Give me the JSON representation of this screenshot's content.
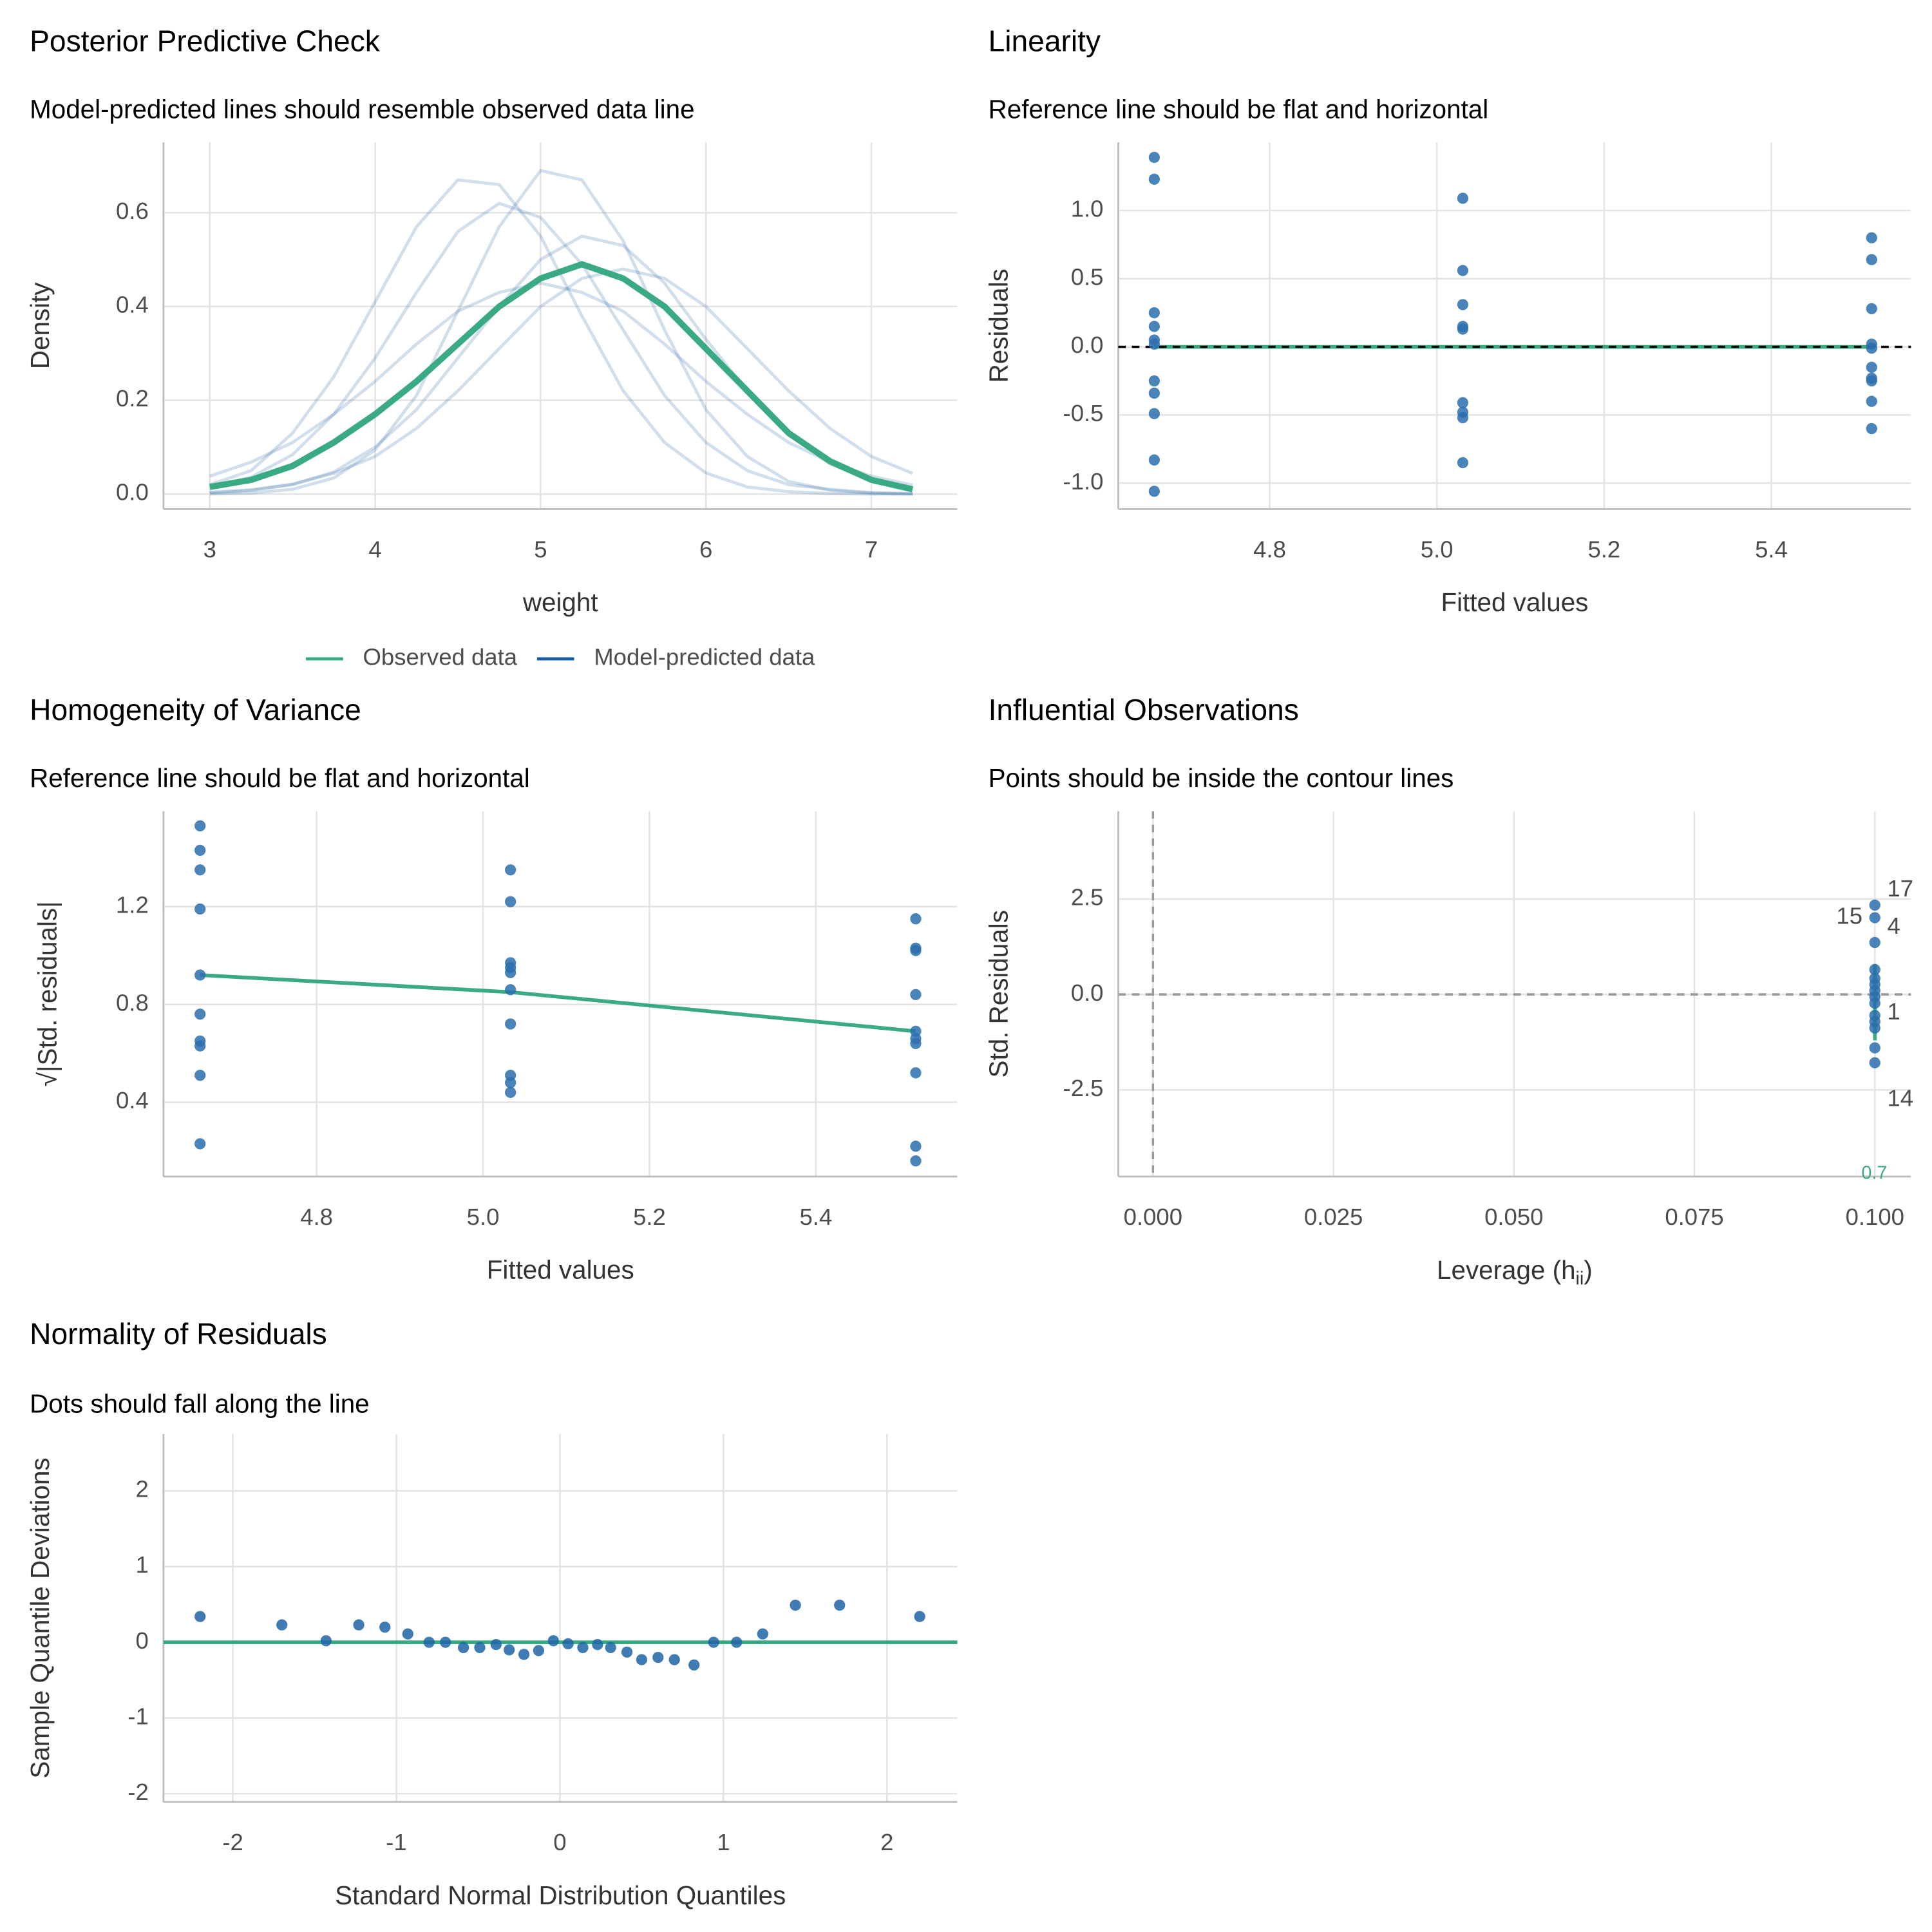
{
  "chart_data": [
    {
      "type": "line",
      "title": "Posterior Predictive Check",
      "subtitle": "Model-predicted lines should resemble observed data line",
      "xlabel": "weight",
      "ylabel": "Density",
      "xlim": [
        2.72,
        7.52
      ],
      "ylim": [
        -0.032,
        0.75
      ],
      "xticks": [
        3,
        4,
        5,
        6,
        7
      ],
      "yticks": [
        {
          "value": 0,
          "label": "0.0"
        },
        0.2,
        0.4,
        0.6
      ],
      "grid": true,
      "legend": "bottom",
      "x": [
        3.0,
        3.25,
        3.5,
        3.75,
        4.0,
        4.25,
        4.5,
        4.75,
        5.0,
        5.25,
        5.5,
        5.75,
        6.0,
        6.25,
        6.5,
        6.75,
        7.0,
        7.25
      ],
      "series": [
        {
          "name": "Observed data",
          "color": "#3aaa84",
          "values": [
            0.015,
            0.03,
            0.06,
            0.11,
            0.17,
            0.24,
            0.32,
            0.4,
            0.46,
            0.49,
            0.46,
            0.4,
            0.31,
            0.22,
            0.13,
            0.07,
            0.03,
            0.01
          ]
        },
        {
          "name": "Model-predicted data",
          "color": "#1b5fa0",
          "values": [
            [
              0.013,
              0.036,
              0.084,
              0.17,
              0.29,
              0.43,
              0.56,
              0.62,
              0.59,
              0.49,
              0.35,
              0.21,
              0.11,
              0.05,
              0.02,
              0.01,
              0.003,
              0.001
            ],
            [
              0.002,
              0.008,
              0.02,
              0.047,
              0.1,
              0.18,
              0.29,
              0.4,
              0.5,
              0.55,
              0.53,
              0.45,
              0.33,
              0.22,
              0.13,
              0.064,
              0.029,
              0.011
            ],
            [
              0.038,
              0.068,
              0.11,
              0.17,
              0.24,
              0.32,
              0.39,
              0.43,
              0.45,
              0.43,
              0.39,
              0.32,
              0.24,
              0.17,
              0.11,
              0.068,
              0.038,
              0.019
            ],
            [
              0.02,
              0.05,
              0.13,
              0.25,
              0.41,
              0.57,
              0.67,
              0.66,
              0.55,
              0.38,
              0.22,
              0.11,
              0.045,
              0.015,
              0.005,
              0.001,
              0,
              0
            ],
            [
              0.004,
              0.009,
              0.021,
              0.044,
              0.08,
              0.14,
              0.22,
              0.31,
              0.4,
              0.46,
              0.48,
              0.46,
              0.4,
              0.31,
              0.22,
              0.14,
              0.08,
              0.044
            ],
            [
              0,
              0.002,
              0.01,
              0.034,
              0.094,
              0.21,
              0.39,
              0.57,
              0.69,
              0.67,
              0.54,
              0.35,
              0.18,
              0.08,
              0.027,
              0.008,
              0.002,
              0
            ]
          ]
        }
      ]
    },
    {
      "type": "scatter",
      "title": "Linearity",
      "subtitle": "Reference line should be flat and horizontal",
      "xlabel": "Fitted values",
      "ylabel": "Residuals",
      "xlim": [
        4.619,
        5.567
      ],
      "ylim": [
        -1.19,
        1.5
      ],
      "xticks": [
        4.8,
        {
          "value": 5,
          "label": "5.0"
        },
        5.2,
        5.4
      ],
      "yticks": [
        {
          "value": -1,
          "label": "-1.0"
        },
        -0.5,
        {
          "value": 0,
          "label": "0.0"
        },
        0.5,
        {
          "value": 1,
          "label": "1.0"
        }
      ],
      "grid": true,
      "color": "#2a6fad",
      "x": [
        4.662,
        4.662,
        4.662,
        4.662,
        4.662,
        4.662,
        4.662,
        4.662,
        4.662,
        4.662,
        4.662,
        5.031,
        5.031,
        5.031,
        5.031,
        5.031,
        5.031,
        5.031,
        5.031,
        5.031,
        5.52,
        5.52,
        5.52,
        5.52,
        5.52,
        5.52,
        5.52,
        5.52,
        5.52,
        5.52
      ],
      "values": [
        1.39,
        1.23,
        0.25,
        0.15,
        0.05,
        0.02,
        -0.25,
        -0.34,
        -0.49,
        -0.83,
        -1.06,
        1.09,
        0.56,
        0.31,
        0.15,
        0.13,
        -0.41,
        -0.48,
        -0.52,
        -0.85,
        0.8,
        0.64,
        0.28,
        0.02,
        -0.01,
        -0.15,
        -0.23,
        -0.25,
        -0.4,
        -0.6
      ],
      "fit": {
        "color": "#3aaa84",
        "x": [
          4.662,
          5.52
        ],
        "values": [
          0,
          0
        ]
      },
      "hline": {
        "value": 0,
        "color": "#000000",
        "dashed": true
      }
    },
    {
      "type": "scatter",
      "title": "Homogeneity of Variance",
      "subtitle": "Reference line should be flat and horizontal",
      "xlabel": "Fitted values",
      "ylabel": "√|Std. residuals|",
      "xlim": [
        4.616,
        5.57
      ],
      "ylim": [
        0.096,
        1.59
      ],
      "xticks": [
        4.8,
        {
          "value": 5,
          "label": "5.0"
        },
        5.2,
        5.4
      ],
      "yticks": [
        0.4,
        0.8,
        1.2
      ],
      "grid": true,
      "color": "#2a6fad",
      "x": [
        4.66,
        4.66,
        4.66,
        4.66,
        4.66,
        4.66,
        4.66,
        4.66,
        4.66,
        4.66,
        5.033,
        5.033,
        5.033,
        5.033,
        5.033,
        5.033,
        5.033,
        5.033,
        5.033,
        5.033,
        5.52,
        5.52,
        5.52,
        5.52,
        5.52,
        5.52,
        5.52,
        5.52,
        5.52,
        5.52
      ],
      "values": [
        1.53,
        1.43,
        1.35,
        1.19,
        0.92,
        0.76,
        0.65,
        0.63,
        0.51,
        0.23,
        1.35,
        1.22,
        0.97,
        0.95,
        0.93,
        0.86,
        0.72,
        0.51,
        0.48,
        0.44,
        1.15,
        1.03,
        1.02,
        0.84,
        0.69,
        0.66,
        0.64,
        0.52,
        0.22,
        0.16
      ],
      "fit": {
        "color": "#3aaa84",
        "x": [
          4.66,
          5.033,
          5.52
        ],
        "values": [
          0.92,
          0.85,
          0.69
        ]
      }
    },
    {
      "type": "scatter",
      "title": "Influential Observations",
      "subtitle": "Points should be inside the contour lines",
      "xlabel": [
        "Leverage (h",
        "ii",
        ")"
      ],
      "ylabel": "Std. Residuals",
      "xlim": [
        -0.0048,
        0.105
      ],
      "ylim": [
        -4.77,
        4.8
      ],
      "xticks": [
        {
          "value": 0,
          "label": "0.000"
        },
        {
          "value": 0.025,
          "label": "0.025"
        },
        {
          "value": 0.05,
          "label": "0.050"
        },
        {
          "value": 0.075,
          "label": "0.075"
        },
        {
          "value": 0.1,
          "label": "0.100"
        }
      ],
      "yticks": [
        -2.5,
        {
          "value": 0,
          "label": "0.0"
        },
        2.5
      ],
      "grid": true,
      "color": "#2a6fad",
      "label_color": "#1b5fa0",
      "x": [
        0.1,
        0.1,
        0.1,
        0.1,
        0.1,
        0.1,
        0.1,
        0.1,
        0.1,
        0.1,
        0.1,
        0.1,
        0.1,
        0.1
      ],
      "values": [
        2.34,
        2.01,
        1.36,
        0.65,
        0.42,
        0.26,
        0.1,
        -0.06,
        -0.23,
        -0.55,
        -0.71,
        -0.88,
        -1.4,
        -1.79
      ],
      "point_labels": [
        "17",
        "15",
        "4",
        null,
        null,
        null,
        null,
        null,
        null,
        null,
        null,
        "1",
        null,
        "14"
      ],
      "fit": {
        "color": "#3aaa84",
        "x": [
          0.1,
          0.1
        ],
        "values": [
          0.8,
          -1.2
        ]
      },
      "hline": {
        "value": 0,
        "color": "#999999",
        "dashed": true
      },
      "vline": {
        "value": 0,
        "color": "#999999",
        "dashed": true
      },
      "annotation": "0.7"
    },
    {
      "type": "scatter",
      "title": "Normality of Residuals",
      "subtitle": "Dots should fall along the line",
      "xlabel": "Standard Normal Distribution Quantiles",
      "ylabel": "Sample Quantile Deviations",
      "xlim": [
        -2.424,
        2.43
      ],
      "ylim": [
        -2.11,
        2.75
      ],
      "xticks": [
        -2,
        -1,
        0,
        1,
        2
      ],
      "yticks": [
        -2,
        -1,
        0,
        1,
        2
      ],
      "grid": true,
      "color": "#1f65a6",
      "x": [
        -2.2,
        -1.7,
        -1.43,
        -1.23,
        -1.07,
        -0.93,
        -0.8,
        -0.7,
        -0.59,
        -0.49,
        -0.39,
        -0.31,
        -0.22,
        -0.13,
        -0.04,
        0.05,
        0.14,
        0.23,
        0.31,
        0.41,
        0.5,
        0.6,
        0.7,
        0.82,
        0.94,
        1.08,
        1.24,
        1.44,
        1.71,
        2.2
      ],
      "values": [
        0.34,
        0.23,
        0.02,
        0.23,
        0.2,
        0.11,
        0,
        0,
        -0.07,
        -0.07,
        -0.03,
        -0.1,
        -0.16,
        -0.11,
        0.02,
        -0.02,
        -0.07,
        -0.03,
        -0.07,
        -0.13,
        -0.23,
        -0.2,
        -0.23,
        -0.3,
        0,
        0,
        0.11,
        0.49,
        0.49,
        0.34
      ],
      "hline": {
        "value": 0,
        "color": "#3aaa84",
        "dashed": false
      }
    }
  ]
}
